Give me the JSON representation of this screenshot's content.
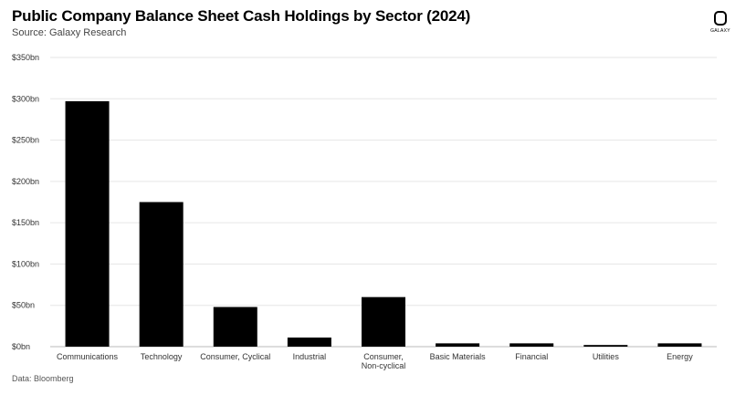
{
  "header": {
    "title": "Public Company Balance Sheet Cash Holdings by Sector (2024)",
    "subtitle": "Source: Galaxy Research"
  },
  "logo": {
    "text": "GALAXY",
    "icon": "galaxy-logo-icon"
  },
  "footer": {
    "source_note": "Data: Bloomberg"
  },
  "chart_data": {
    "type": "bar",
    "categories": [
      "Communications",
      "Technology",
      "Consumer, Cyclical",
      "Industrial",
      "Consumer, Non-cyclical",
      "Basic Materials",
      "Financial",
      "Utilities",
      "Energy"
    ],
    "values": [
      297,
      175,
      48,
      11,
      60,
      4,
      4,
      2,
      4
    ],
    "ylim": [
      0,
      350
    ],
    "yticks": [
      0,
      50,
      100,
      150,
      200,
      250,
      300,
      350
    ],
    "ytick_labels": [
      "$0bn",
      "$50bn",
      "$100bn",
      "$150bn",
      "$200bn",
      "$250bn",
      "$300bn",
      "$350bn"
    ],
    "bar_color": "#000000",
    "grid": true,
    "xlabel": "",
    "ylabel": ""
  }
}
